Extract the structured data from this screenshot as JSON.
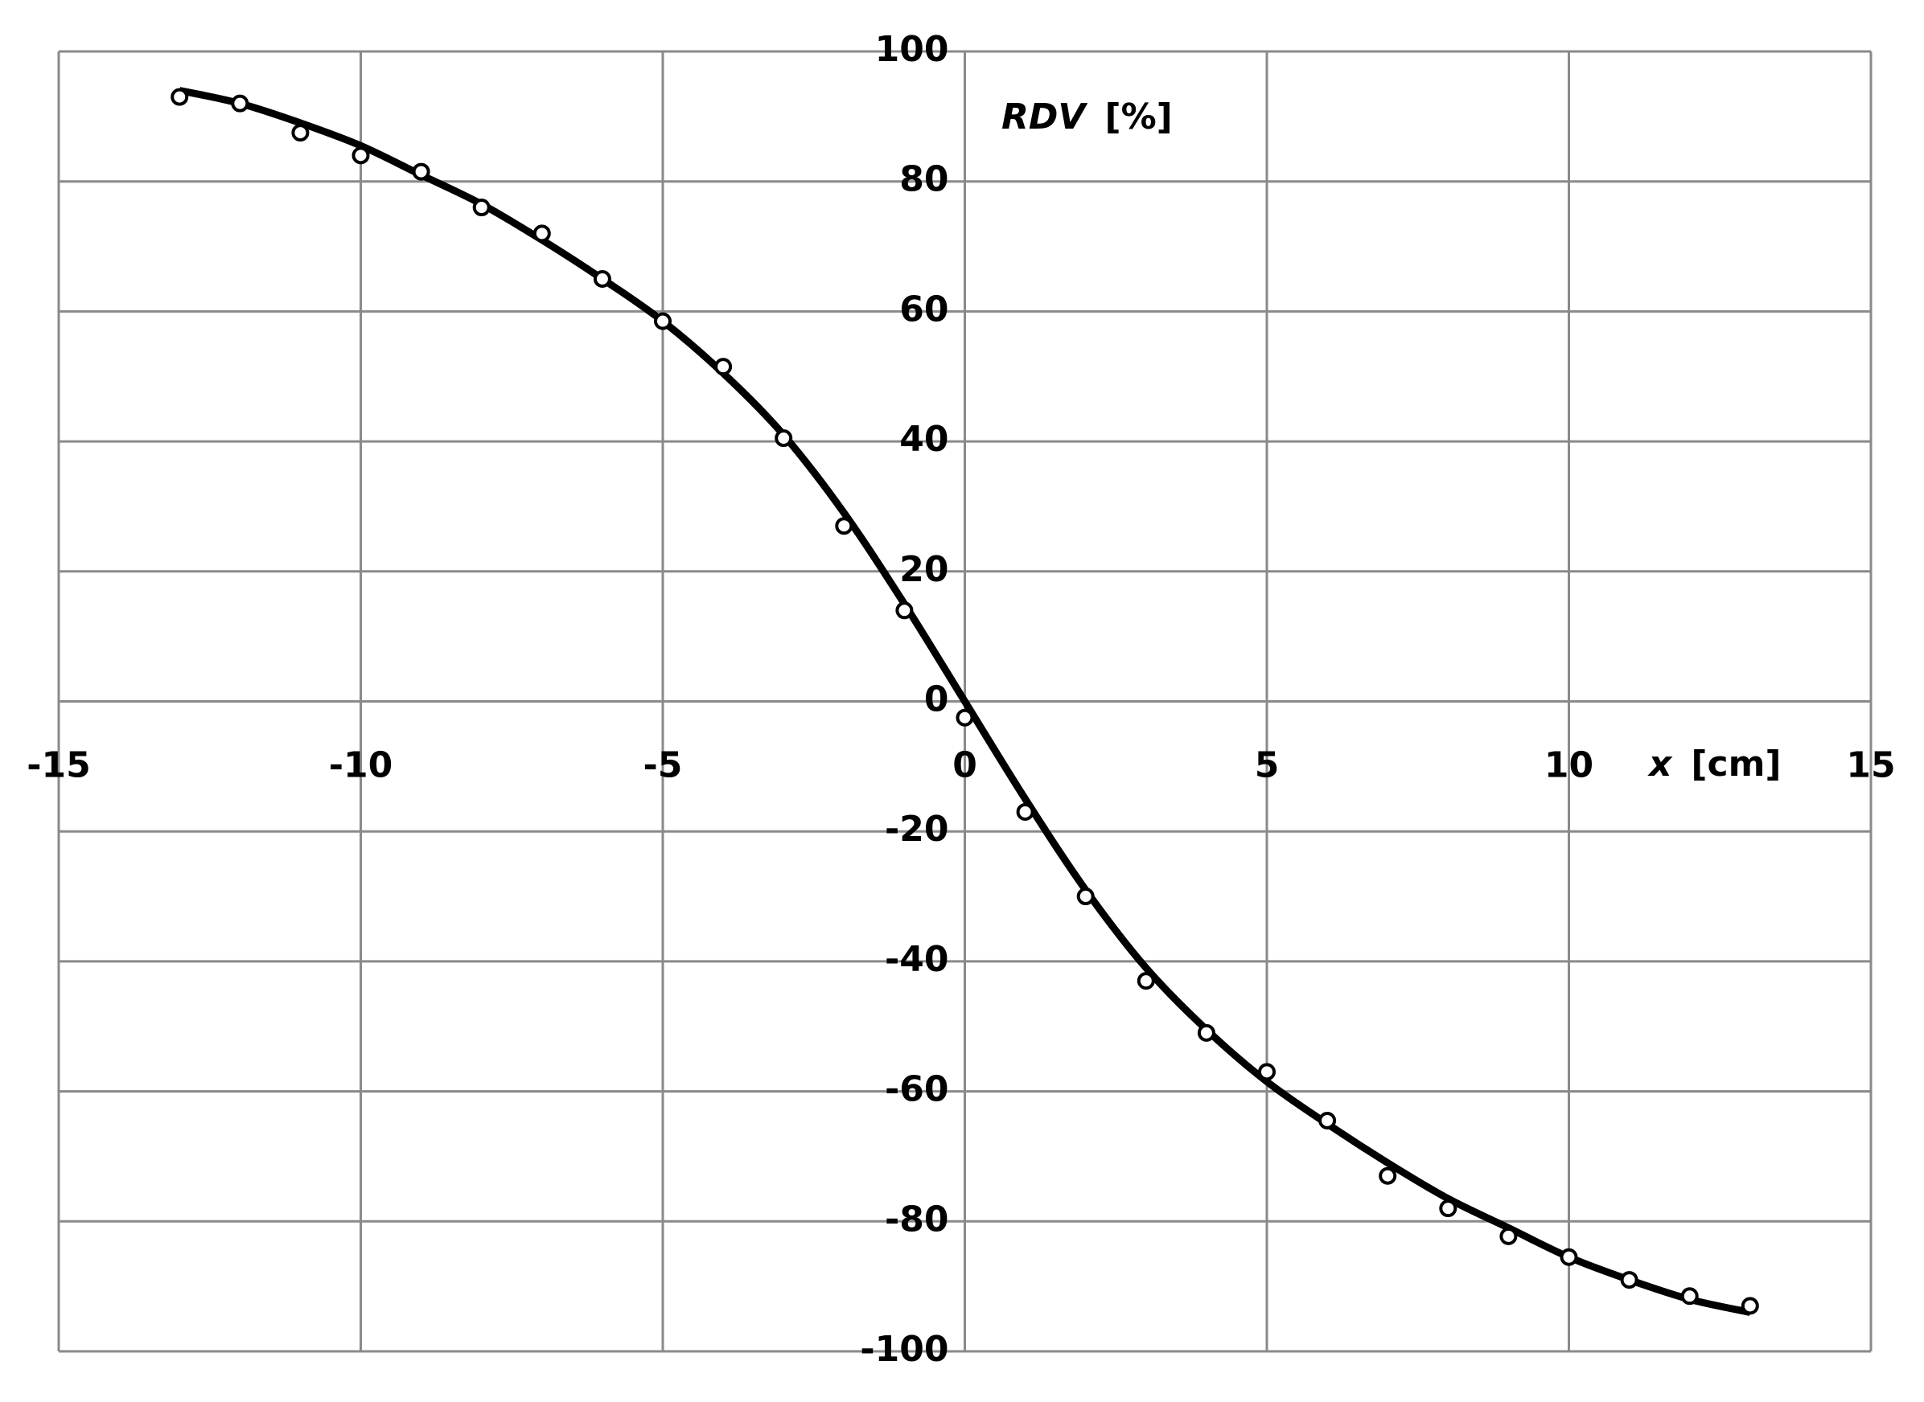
{
  "chart_data": {
    "type": "line",
    "ylabel": "RDV",
    "yunit": "[%]",
    "xlabel": "x",
    "xunit": "[cm]",
    "xlim": [
      -15,
      15
    ],
    "xticks": [
      -15,
      -10,
      -5,
      0,
      5,
      10,
      15
    ],
    "ylim": [
      -100,
      100
    ],
    "yticks": [
      -100,
      -80,
      -60,
      -40,
      -20,
      0,
      20,
      40,
      60,
      80,
      100
    ],
    "grid": true,
    "series": [
      {
        "style": "line",
        "color": "#000000",
        "x": [
          -13,
          -12,
          -11,
          -10,
          -9,
          -8,
          -7,
          -6,
          -5,
          -4,
          -3,
          -2,
          -1,
          0,
          1,
          2,
          3,
          4,
          5,
          6,
          7,
          8,
          9,
          10,
          11,
          12,
          13
        ],
        "values": [
          94,
          92,
          89,
          85.5,
          81,
          76.5,
          71,
          65,
          58.5,
          50.5,
          41,
          29,
          15,
          0,
          -15,
          -29,
          -41,
          -50.5,
          -58.5,
          -65,
          -71,
          -76.5,
          -81,
          -85.5,
          -89,
          -92,
          -94
        ]
      },
      {
        "style": "markers",
        "color": "#000000",
        "x": [
          -13,
          -12,
          -11,
          -10,
          -9,
          -8,
          -7,
          -6,
          -5,
          -4,
          -3,
          -2,
          -1,
          0,
          1,
          2,
          3,
          4,
          5,
          6,
          7,
          8,
          9,
          10,
          11,
          12,
          13
        ],
        "values": [
          93,
          92,
          87.5,
          84,
          81.5,
          76,
          72,
          65,
          58.5,
          51.5,
          40.5,
          27,
          14,
          -2.5,
          -17,
          -30,
          -43,
          -51,
          -57,
          -64.5,
          -73,
          -78,
          -82.3,
          -85.5,
          -89,
          -91.5,
          -93
        ]
      }
    ]
  }
}
